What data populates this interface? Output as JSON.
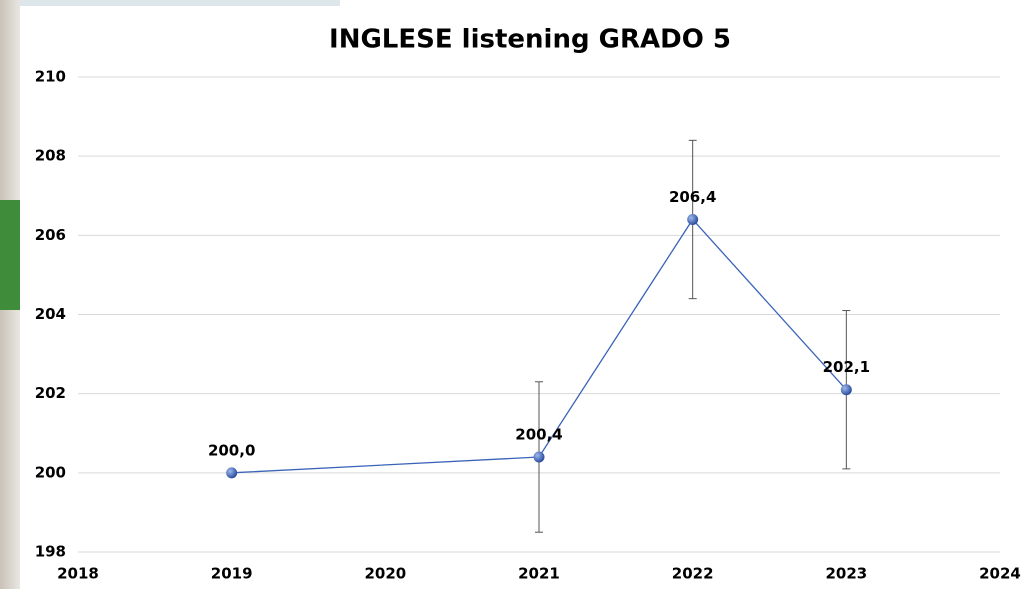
{
  "chart_data": {
    "type": "line",
    "title": "INGLESE listening GRADO 5",
    "x": [
      2019,
      2021,
      2022,
      2023
    ],
    "values": [
      200.0,
      200.4,
      206.4,
      202.1
    ],
    "value_labels": [
      "200,0",
      "200,4",
      "206,4",
      "202,1"
    ],
    "error": [
      null,
      1.9,
      2.0,
      2.0
    ],
    "color": "#3a63b8",
    "xlim": [
      2018,
      2024
    ],
    "xticks": [
      2018,
      2019,
      2020,
      2021,
      2022,
      2023,
      2024
    ],
    "ylim": [
      198,
      210
    ],
    "yticks": [
      198,
      200,
      202,
      204,
      206,
      208,
      210
    ],
    "grid": true
  }
}
